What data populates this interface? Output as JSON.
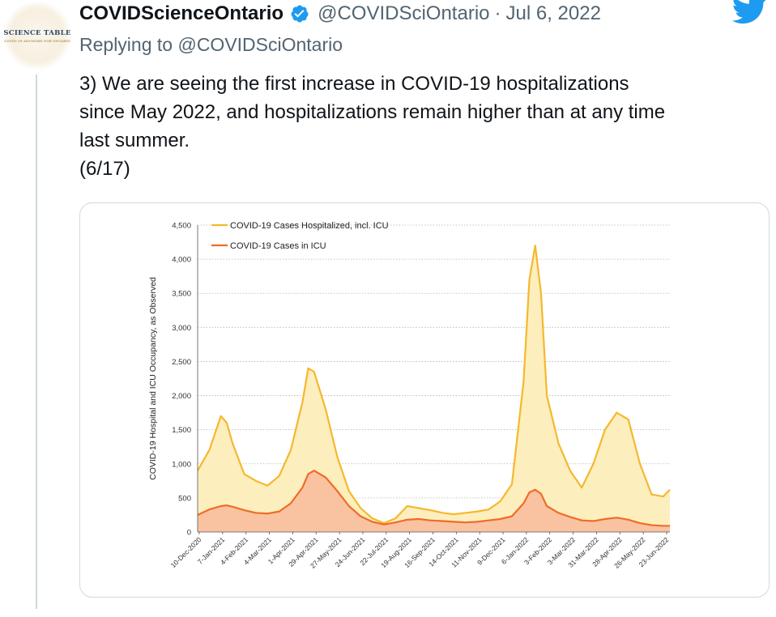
{
  "tweet": {
    "author_name": "COVIDScienceOntario",
    "handle": "@COVIDSciOntario",
    "separator": "·",
    "date": "Jul 6, 2022",
    "replying_to_prefix": "Replying to ",
    "replying_to_handle": "@COVIDSciOntario",
    "text_lines": [
      "3) We are seeing the first increase in COVID-19 hospitalizations",
      "since May 2022, and hospitalizations remain higher than at any time",
      "last summer.",
      "(6/17)"
    ],
    "avatar_text": "SCIENCE TABLE",
    "avatar_subtext": "COVID-19 ADVISORY FOR ONTARIO"
  },
  "icons": {
    "verified": "verified-badge-icon",
    "brand": "twitter-bird-icon"
  },
  "colors": {
    "twitter_blue": "#1d9bf0",
    "hospitalized": "#f5b82e",
    "hospitalized_fill": "#fdeebd",
    "icu": "#ef6c28",
    "icu_fill": "#f9c3a1"
  },
  "chart_data": {
    "type": "area",
    "ylabel": "COVID-19 Hospital and ICU Occupancy, as Observed",
    "xlabel": "",
    "ylim": [
      0,
      4500
    ],
    "yticks": [
      0,
      500,
      1000,
      1500,
      2000,
      2500,
      3000,
      3500,
      4000,
      4500
    ],
    "ytick_labels": [
      "0",
      "500",
      "1,000",
      "1,500",
      "2,000",
      "2,500",
      "3,000",
      "3,500",
      "4,000",
      "4,500"
    ],
    "grid": true,
    "legend_position": "top-left",
    "x_tick_labels": [
      "10-Dec-2020",
      "7-Jan-2021",
      "4-Feb-2021",
      "4-Mar-2021",
      "1-Apr-2021",
      "29-Apr-2021",
      "27-May-2021",
      "24-Jun-2021",
      "22-Jul-2021",
      "19-Aug-2021",
      "16-Sep-2021",
      "14-Oct-2021",
      "11-Nov-2021",
      "9-Dec-2021",
      "6-Jan-2022",
      "3-Feb-2022",
      "3-Mar-2022",
      "31-Mar-2022",
      "28-Apr-2022",
      "26-May-2022",
      "23-Jun-2022"
    ],
    "series": [
      {
        "name": "COVID-19 Cases Hospitalized, incl. ICU",
        "x": [
          "2020-12-10",
          "2020-12-24",
          "2021-01-07",
          "2021-01-14",
          "2021-01-21",
          "2021-02-04",
          "2021-02-18",
          "2021-03-04",
          "2021-03-18",
          "2021-04-01",
          "2021-04-15",
          "2021-04-22",
          "2021-04-29",
          "2021-05-13",
          "2021-05-27",
          "2021-06-10",
          "2021-06-24",
          "2021-07-08",
          "2021-07-22",
          "2021-08-05",
          "2021-08-19",
          "2021-09-02",
          "2021-09-16",
          "2021-10-01",
          "2021-10-14",
          "2021-10-28",
          "2021-11-11",
          "2021-11-25",
          "2021-12-09",
          "2021-12-23",
          "2022-01-06",
          "2022-01-13",
          "2022-01-20",
          "2022-01-27",
          "2022-02-03",
          "2022-02-17",
          "2022-03-03",
          "2022-03-17",
          "2022-03-31",
          "2022-04-14",
          "2022-04-28",
          "2022-05-12",
          "2022-05-26",
          "2022-06-09",
          "2022-06-23",
          "2022-07-01"
        ],
        "values": [
          900,
          1200,
          1700,
          1600,
          1300,
          850,
          750,
          680,
          820,
          1200,
          1900,
          2400,
          2350,
          1800,
          1100,
          600,
          350,
          200,
          130,
          200,
          380,
          350,
          320,
          280,
          260,
          280,
          300,
          330,
          450,
          700,
          2200,
          3700,
          4200,
          3500,
          2000,
          1300,
          900,
          650,
          1000,
          1500,
          1750,
          1650,
          1000,
          550,
          520,
          620
        ]
      },
      {
        "name": "COVID-19 Cases in ICU",
        "x": [
          "2020-12-10",
          "2020-12-24",
          "2021-01-07",
          "2021-01-14",
          "2021-01-21",
          "2021-02-04",
          "2021-02-18",
          "2021-03-04",
          "2021-03-18",
          "2021-04-01",
          "2021-04-15",
          "2021-04-22",
          "2021-04-29",
          "2021-05-13",
          "2021-05-27",
          "2021-06-10",
          "2021-06-24",
          "2021-07-08",
          "2021-07-22",
          "2021-08-05",
          "2021-08-19",
          "2021-09-02",
          "2021-09-16",
          "2021-10-01",
          "2021-10-14",
          "2021-10-28",
          "2021-11-11",
          "2021-11-25",
          "2021-12-09",
          "2021-12-23",
          "2022-01-06",
          "2022-01-13",
          "2022-01-20",
          "2022-01-27",
          "2022-02-03",
          "2022-02-17",
          "2022-03-03",
          "2022-03-17",
          "2022-03-31",
          "2022-04-14",
          "2022-04-28",
          "2022-05-12",
          "2022-05-26",
          "2022-06-09",
          "2022-06-23",
          "2022-07-01"
        ],
        "values": [
          250,
          330,
          380,
          390,
          370,
          320,
          280,
          270,
          300,
          420,
          650,
          850,
          900,
          800,
          600,
          380,
          230,
          150,
          110,
          140,
          180,
          190,
          170,
          160,
          150,
          140,
          150,
          170,
          190,
          230,
          420,
          580,
          620,
          560,
          380,
          280,
          220,
          170,
          160,
          190,
          210,
          180,
          130,
          100,
          90,
          90
        ]
      }
    ]
  }
}
